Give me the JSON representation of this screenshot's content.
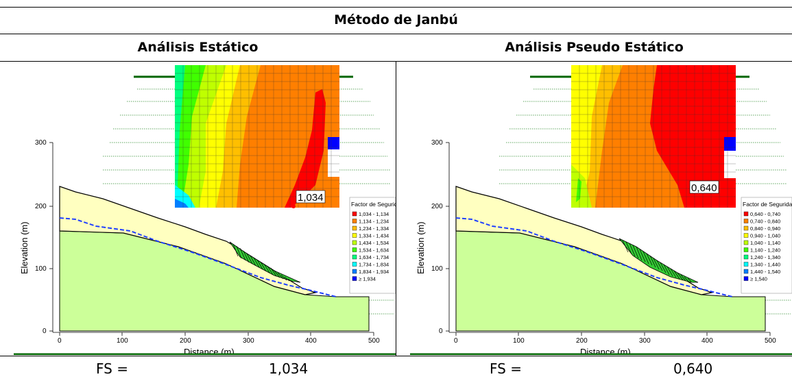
{
  "title": "Método de Janbú",
  "panels": [
    {
      "subtitle": "Análisis Estático",
      "fs_label": "FS =",
      "fs_value": "1,034",
      "min_fs_label": "1,034",
      "legend_title": "Factor de Seguridad",
      "legend": [
        {
          "label": "1,034 - 1,134",
          "color": "#ff0000"
        },
        {
          "label": "1,134 - 1,234",
          "color": "#ff7f00"
        },
        {
          "label": "1,234 - 1,334",
          "color": "#ffbf00"
        },
        {
          "label": "1,334 - 1,434",
          "color": "#ffff00"
        },
        {
          "label": "1,434 - 1,534",
          "color": "#bfff00"
        },
        {
          "label": "1,534 - 1,634",
          "color": "#40ff00"
        },
        {
          "label": "1,634 - 1,734",
          "color": "#00ff7f"
        },
        {
          "label": "1,734 - 1,834",
          "color": "#00ffff"
        },
        {
          "label": "1,834 - 1,934",
          "color": "#007fff"
        },
        {
          "label": "≥ 1,934",
          "color": "#0000ff"
        }
      ]
    },
    {
      "subtitle": "Análisis Pseudo Estático",
      "fs_label": "FS =",
      "fs_value": "0,640",
      "min_fs_label": "0,640",
      "legend_title": "Factor de Seguridad",
      "legend": [
        {
          "label": "0,640 - 0,740",
          "color": "#ff0000"
        },
        {
          "label": "0,740 - 0,840",
          "color": "#ff7f00"
        },
        {
          "label": "0,840 - 0,940",
          "color": "#ffbf00"
        },
        {
          "label": "0,940 - 1,040",
          "color": "#ffff00"
        },
        {
          "label": "1,040 - 1,140",
          "color": "#bfff00"
        },
        {
          "label": "1,140 - 1,240",
          "color": "#40ff00"
        },
        {
          "label": "1,240 - 1,340",
          "color": "#00ff7f"
        },
        {
          "label": "1,340 - 1,440",
          "color": "#00ffff"
        },
        {
          "label": "1,440 - 1,540",
          "color": "#007fff"
        },
        {
          "label": "≥ 1,540",
          "color": "#0000ff"
        }
      ]
    }
  ],
  "axes": {
    "xlabel": "Distance (m)",
    "ylabel": "Elevation (m)",
    "xticks": [
      "0",
      "100",
      "200",
      "300",
      "400",
      "500"
    ],
    "yticks": [
      "0",
      "100",
      "200",
      "300"
    ]
  },
  "colors": {
    "soil_upper": "#ffffc0",
    "soil_lower": "#ccff99",
    "water_table": "#1f3fff",
    "slice_fill": "#33cc33",
    "grid_frame": "#006400"
  }
}
